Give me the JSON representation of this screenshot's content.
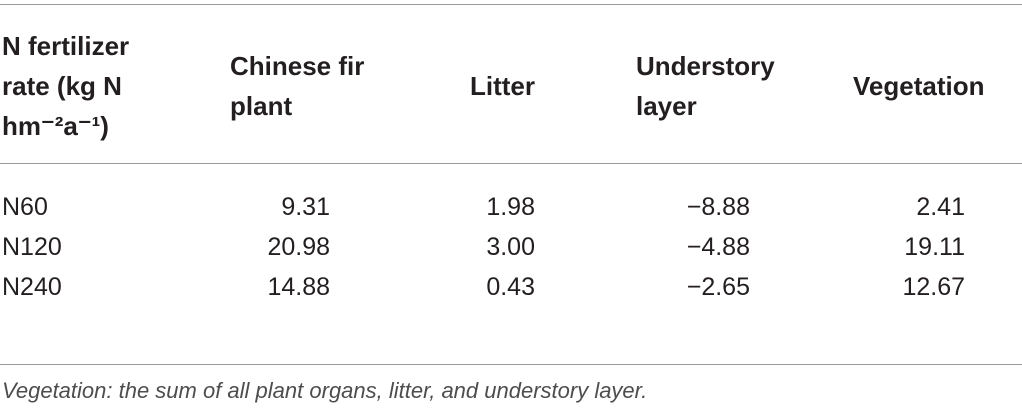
{
  "table": {
    "headers": [
      "N fertilizer rate (kg N hm⁻²a⁻¹)",
      "Chinese fir plant",
      "Litter",
      "Understory layer",
      "Vegetation"
    ],
    "rows": [
      [
        "N60",
        "9.31",
        "1.98",
        "−8.88",
        "2.41"
      ],
      [
        "N120",
        "20.98",
        "3.00",
        "−4.88",
        "19.11"
      ],
      [
        "N240",
        "14.88",
        "0.43",
        "−2.65",
        "12.67"
      ]
    ],
    "footnote": "Vegetation: the sum of all plant organs, litter, and understory layer."
  }
}
